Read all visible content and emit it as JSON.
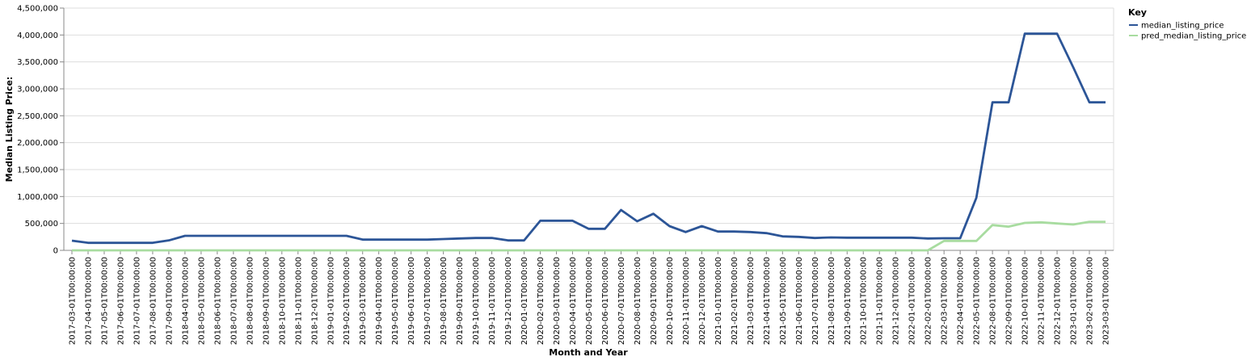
{
  "chart_data": {
    "type": "line",
    "xlabel": "Month and Year",
    "ylabel": "Median Listing Price:",
    "ylim": [
      0,
      4500000
    ],
    "y_ticks": [
      "0",
      "500,000",
      "1,000,000",
      "1,500,000",
      "2,000,000",
      "2,500,000",
      "3,000,000",
      "3,500,000",
      "4,000,000",
      "4,500,000"
    ],
    "y_tick_values": [
      0,
      500000,
      1000000,
      1500000,
      2000000,
      2500000,
      3000000,
      3500000,
      4000000,
      4500000
    ],
    "grid": true,
    "legend": {
      "title": "Key",
      "position": "right"
    },
    "x": [
      "2017-03-01T00:00:00",
      "2017-04-01T00:00:00",
      "2017-05-01T00:00:00",
      "2017-06-01T00:00:00",
      "2017-07-01T00:00:00",
      "2017-08-01T00:00:00",
      "2017-09-01T00:00:00",
      "2018-04-01T00:00:00",
      "2018-05-01T00:00:00",
      "2018-06-01T00:00:00",
      "2018-07-01T00:00:00",
      "2018-08-01T00:00:00",
      "2018-09-01T00:00:00",
      "2018-10-01T00:00:00",
      "2018-11-01T00:00:00",
      "2018-12-01T00:00:00",
      "2019-01-01T00:00:00",
      "2019-02-01T00:00:00",
      "2019-03-01T00:00:00",
      "2019-04-01T00:00:00",
      "2019-05-01T00:00:00",
      "2019-06-01T00:00:00",
      "2019-07-01T00:00:00",
      "2019-08-01T00:00:00",
      "2019-09-01T00:00:00",
      "2019-10-01T00:00:00",
      "2019-11-01T00:00:00",
      "2019-12-01T00:00:00",
      "2020-01-01T00:00:00",
      "2020-02-01T00:00:00",
      "2020-03-01T00:00:00",
      "2020-04-01T00:00:00",
      "2020-05-01T00:00:00",
      "2020-06-01T00:00:00",
      "2020-07-01T00:00:00",
      "2020-08-01T00:00:00",
      "2020-09-01T00:00:00",
      "2020-10-01T00:00:00",
      "2020-11-01T00:00:00",
      "2020-12-01T00:00:00",
      "2021-01-01T00:00:00",
      "2021-02-01T00:00:00",
      "2021-03-01T00:00:00",
      "2021-04-01T00:00:00",
      "2021-05-01T00:00:00",
      "2021-06-01T00:00:00",
      "2021-07-01T00:00:00",
      "2021-08-01T00:00:00",
      "2021-09-01T00:00:00",
      "2021-10-01T00:00:00",
      "2021-11-01T00:00:00",
      "2021-12-01T00:00:00",
      "2022-01-01T00:00:00",
      "2022-02-01T00:00:00",
      "2022-03-01T00:00:00",
      "2022-04-01T00:00:00",
      "2022-05-01T00:00:00",
      "2022-08-01T00:00:00",
      "2022-09-01T00:00:00",
      "2022-10-01T00:00:00",
      "2022-11-01T00:00:00",
      "2022-12-01T00:00:00",
      "2023-01-01T00:00:00",
      "2023-02-01T00:00:00",
      "2023-03-01T00:00:00"
    ],
    "series": [
      {
        "name": "median_listing_price",
        "color": "#2c5597",
        "values": [
          180000,
          140000,
          140000,
          140000,
          140000,
          140000,
          185000,
          270000,
          270000,
          270000,
          270000,
          270000,
          270000,
          270000,
          270000,
          270000,
          270000,
          270000,
          200000,
          200000,
          200000,
          200000,
          200000,
          210000,
          220000,
          230000,
          230000,
          185000,
          185000,
          550000,
          550000,
          550000,
          400000,
          400000,
          750000,
          540000,
          680000,
          450000,
          340000,
          450000,
          350000,
          350000,
          340000,
          320000,
          260000,
          250000,
          230000,
          240000,
          235000,
          235000,
          235000,
          235000,
          235000,
          220000,
          225000,
          225000,
          975000,
          2750000,
          2750000,
          4025000,
          4025000,
          4025000,
          3400000,
          2750000,
          2750000
        ]
      },
      {
        "name": "pred_median_listing_price",
        "color": "#a8dca0",
        "values": [
          0,
          0,
          0,
          0,
          0,
          0,
          0,
          0,
          0,
          0,
          0,
          0,
          0,
          0,
          0,
          0,
          0,
          0,
          0,
          0,
          0,
          0,
          0,
          0,
          0,
          0,
          0,
          0,
          0,
          0,
          0,
          0,
          0,
          0,
          0,
          0,
          0,
          0,
          0,
          0,
          0,
          0,
          0,
          0,
          0,
          0,
          0,
          0,
          0,
          0,
          0,
          0,
          0,
          0,
          175000,
          175000,
          175000,
          470000,
          440000,
          510000,
          520000,
          500000,
          480000,
          530000,
          530000
        ]
      }
    ]
  }
}
